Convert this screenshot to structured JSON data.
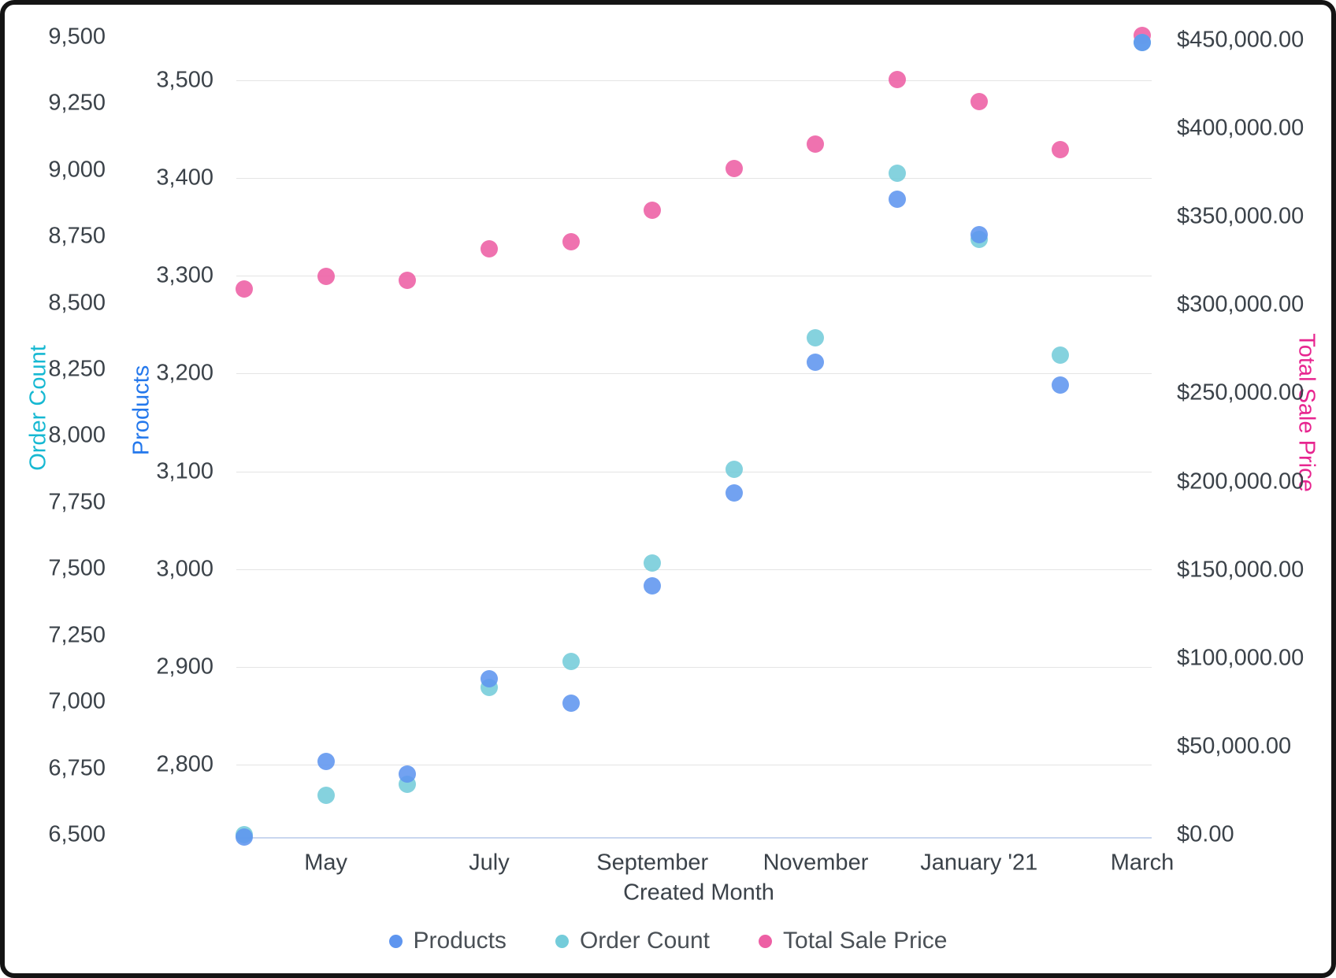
{
  "chart_data": {
    "type": "scatter",
    "title": "",
    "x_axis": {
      "title": "Created Month",
      "num_points": 12,
      "ticks": [
        {
          "index": 1,
          "label": "May"
        },
        {
          "index": 3,
          "label": "July"
        },
        {
          "index": 5,
          "label": "September"
        },
        {
          "index": 7,
          "label": "November"
        },
        {
          "index": 9,
          "label": "January '21"
        },
        {
          "index": 11,
          "label": "March"
        }
      ]
    },
    "axes": {
      "order_count": {
        "title": "Order Count",
        "side": "left-outer",
        "title_color": "#16b8d2",
        "ticks": [
          {
            "v": 6500,
            "label": "6,500"
          },
          {
            "v": 6750,
            "label": "6,750"
          },
          {
            "v": 7000,
            "label": "7,000"
          },
          {
            "v": 7250,
            "label": "7,250"
          },
          {
            "v": 7500,
            "label": "7,500"
          },
          {
            "v": 7750,
            "label": "7,750"
          },
          {
            "v": 8000,
            "label": "8,000"
          },
          {
            "v": 8250,
            "label": "8,250"
          },
          {
            "v": 8500,
            "label": "8,500"
          },
          {
            "v": 8750,
            "label": "8,750"
          },
          {
            "v": 9000,
            "label": "9,000"
          },
          {
            "v": 9250,
            "label": "9,250"
          },
          {
            "v": 9500,
            "label": "9,500"
          }
        ]
      },
      "products": {
        "title": "Products",
        "side": "left-inner",
        "title_color": "#2478ec",
        "gridlines": true,
        "ticks": [
          {
            "v": 2800,
            "label": "2,800"
          },
          {
            "v": 2900,
            "label": "2,900"
          },
          {
            "v": 3000,
            "label": "3,000"
          },
          {
            "v": 3100,
            "label": "3,100"
          },
          {
            "v": 3200,
            "label": "3,200"
          },
          {
            "v": 3300,
            "label": "3,300"
          },
          {
            "v": 3400,
            "label": "3,400"
          },
          {
            "v": 3500,
            "label": "3,500"
          }
        ]
      },
      "total_sale_price": {
        "title": "Total Sale Price",
        "side": "right",
        "title_color": "#e7258f",
        "ticks": [
          {
            "v": 0,
            "label": "$0.00"
          },
          {
            "v": 50000,
            "label": "$50,000.00"
          },
          {
            "v": 100000,
            "label": "$100,000.00"
          },
          {
            "v": 150000,
            "label": "$150,000.00"
          },
          {
            "v": 200000,
            "label": "$200,000.00"
          },
          {
            "v": 250000,
            "label": "$250,000.00"
          },
          {
            "v": 300000,
            "label": "$300,000.00"
          },
          {
            "v": 350000,
            "label": "$350,000.00"
          },
          {
            "v": 400000,
            "label": "$400,000.00"
          },
          {
            "v": 450000,
            "label": "$450,000.00"
          }
        ]
      }
    },
    "series": [
      {
        "name": "Products",
        "axis": "products",
        "color": "#5e95ef",
        "values": [
          2726,
          2803,
          2790,
          2888,
          2863,
          2983,
          3078,
          3212,
          3378,
          3342,
          3188,
          3539
        ]
      },
      {
        "name": "Order Count",
        "axis": "order_count",
        "color": "#74ccda",
        "values": [
          6500,
          6648,
          6689,
          7055,
          7153,
          7522,
          7873,
          8369,
          8987,
          8738,
          8304,
          9480
        ]
      },
      {
        "name": "Total Sale Price",
        "axis": "total_sale_price",
        "color": "#ed5fa4",
        "values": [
          308900,
          316200,
          314000,
          331700,
          335700,
          353500,
          377100,
          391300,
          427800,
          415300,
          388200,
          452700
        ]
      }
    ],
    "legend": [
      {
        "label": "Products",
        "color": "#5e95ef"
      },
      {
        "label": "Order Count",
        "color": "#74ccda"
      },
      {
        "label": "Total Sale Price",
        "color": "#ed5fa4"
      }
    ],
    "layout_hints": {
      "grid": "horizontal-only",
      "legend_position": "bottom-center",
      "x_label_every": "2nd month"
    }
  }
}
